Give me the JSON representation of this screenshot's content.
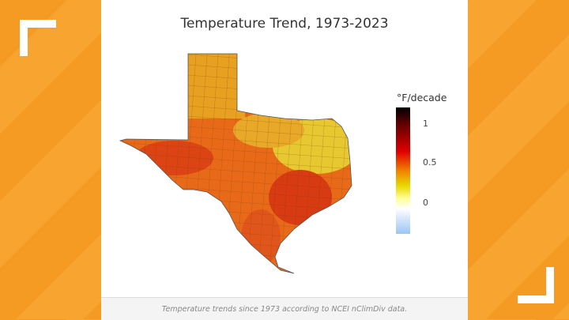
{
  "title": "Temperature Trend, 1973-2023",
  "legend": {
    "title": "°F/decade",
    "ticks": [
      "1",
      "0.5",
      "0"
    ],
    "colorscale": [
      "#000000",
      "#e00000",
      "#f08000",
      "#e8d800",
      "#ffffff",
      "#9cc6f3"
    ]
  },
  "caption": "Temperature trends since 1973 according to NCEI nClimDiv data.",
  "colors": {
    "background": "#f7a530",
    "panel": "#ffffff",
    "corner_brackets": "#ffffff"
  },
  "map": {
    "region": "Texas counties",
    "palette": {
      "north": "#e8a020",
      "northeast": "#e8d030",
      "west": "#e05010",
      "southeast": "#d83010"
    }
  }
}
